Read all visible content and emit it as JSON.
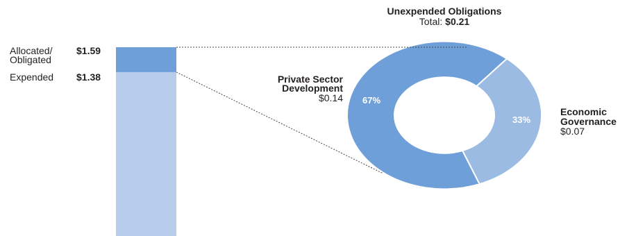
{
  "chart_data": [
    {
      "type": "bar",
      "categories": [
        "Allocated/ Obligated",
        "Expended"
      ],
      "values": [
        1.59,
        1.38
      ],
      "value_labels": [
        "$1.59",
        "$1.38"
      ],
      "ylim": [
        0,
        1.59
      ],
      "colors": {
        "obligated": "#6f9fd8",
        "expended": "#b7cbea"
      }
    },
    {
      "type": "pie",
      "title": "Unexpended Obligations",
      "subtitle_prefix": "Total: ",
      "subtitle_value": "$0.21",
      "slices": [
        {
          "name_line1": "Private Sector",
          "name_line2": "Development",
          "value": 0.14,
          "value_label": "$0.14",
          "percent": 67,
          "percent_label": "67%",
          "color": "#6f9fd8"
        },
        {
          "name_line1": "Economic",
          "name_line2": "Governance",
          "value": 0.07,
          "value_label": "$0.07",
          "percent": 33,
          "percent_label": "33%",
          "color": "#9bbbe3"
        }
      ],
      "donut": true,
      "connector_style": "dotted"
    }
  ]
}
